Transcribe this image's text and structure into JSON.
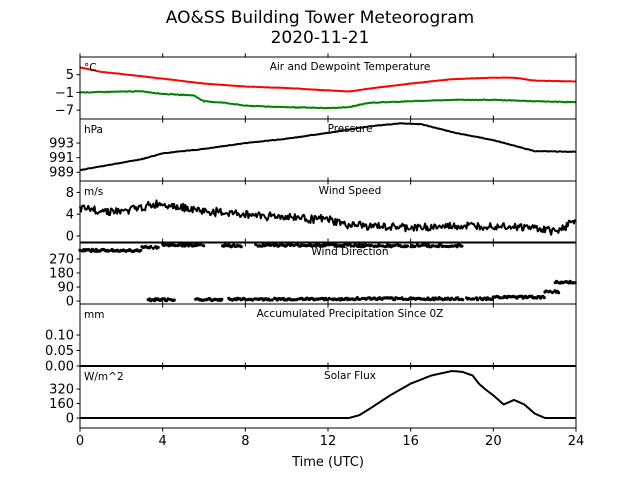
{
  "title": "AO&SS Building Tower Meteorogram",
  "subtitle": "2020-11-21",
  "chart_data": {
    "type": "line",
    "xlabel": "Time (UTC)",
    "xlim": [
      0,
      24
    ],
    "xticks": [
      0,
      4,
      8,
      12,
      16,
      20,
      24
    ],
    "panels": [
      {
        "title": "Air and Dewpoint Temperature",
        "unit": "°C",
        "ylim": [
          -10,
          11
        ],
        "yticks": [
          5,
          -1,
          -7
        ],
        "yticklabels": [
          "5",
          "−1",
          "−7"
        ],
        "series": [
          {
            "name": "Air Temperature",
            "color": "#ff0000",
            "x": [
              0,
              1,
              3,
              6,
              8,
              10,
              12,
              13,
              14,
              16,
              18,
              20,
              21,
              22,
              24
            ],
            "y": [
              7.5,
              6,
              4.5,
              2,
              1,
              0.5,
              -0.3,
              -0.7,
              0.3,
              2,
              3.5,
              4,
              4,
              3,
              2.7
            ],
            "noise": 0.15
          },
          {
            "name": "Dewpoint",
            "color": "#008000",
            "x": [
              0,
              3,
              4,
              5.5,
              6,
              7,
              8,
              10,
              12,
              13,
              14,
              16,
              18,
              20,
              22,
              24
            ],
            "y": [
              -1,
              -0.6,
              -1.5,
              -2,
              -4,
              -4.5,
              -5.5,
              -6,
              -6.3,
              -6,
              -4.5,
              -4,
              -3.5,
              -3.5,
              -4,
              -4.3
            ],
            "noise": 0.3
          }
        ]
      },
      {
        "title": "Pressure",
        "unit": "hPa",
        "ylim": [
          987.8,
          996.3
        ],
        "yticks": [
          993,
          991,
          989
        ],
        "yticklabels": [
          "993",
          "991",
          "989"
        ],
        "series": [
          {
            "name": "Pressure",
            "color": "#000000",
            "x": [
              0,
              3,
              4,
              6,
              8,
              10,
              12,
              14,
              15.5,
              16.5,
              18,
              20,
              22,
              24
            ],
            "y": [
              989.3,
              990.8,
              991.6,
              992.2,
              993,
              993.6,
              994.4,
              995.3,
              995.7,
              995.6,
              994.5,
              993.4,
              991.9,
              991.8
            ],
            "noise": 0.1
          }
        ]
      },
      {
        "title": "Wind Speed",
        "unit": "m/s",
        "ylim": [
          -1.3,
          10.1
        ],
        "yticks": [
          8,
          4,
          0
        ],
        "yticklabels": [
          "8",
          "4",
          "0"
        ],
        "series": [
          {
            "name": "Wind Speed",
            "color": "#000000",
            "x": [
              0,
              2,
              4,
              6,
              8,
              10,
              12,
              13,
              16,
              20,
              22,
              23,
              24
            ],
            "y": [
              5,
              4.5,
              6,
              4.5,
              4,
              3.5,
              3,
              2,
              1.5,
              2,
              1.5,
              0.8,
              3
            ],
            "noise": 1.8
          }
        ]
      },
      {
        "title": "Wind Direction",
        "unit": "",
        "ylim": [
          -19,
          379
        ],
        "yticks": [
          270,
          180,
          90,
          0
        ],
        "yticklabels": [
          "270",
          "180",
          "90",
          "0"
        ],
        "scatter": true,
        "clusters": [
          {
            "from": 0,
            "to": 3,
            "deg": 325
          },
          {
            "from": 3,
            "to": 3.8,
            "deg": 345
          },
          {
            "from": 3.3,
            "to": 4.6,
            "deg": 8
          },
          {
            "from": 4,
            "to": 6,
            "deg": 360
          },
          {
            "from": 5.6,
            "to": 6.9,
            "deg": 10
          },
          {
            "from": 6.9,
            "to": 7.8,
            "deg": 355
          },
          {
            "from": 7.2,
            "to": 13,
            "deg": 12
          },
          {
            "from": 8.5,
            "to": 13.5,
            "deg": 358
          },
          {
            "from": 13,
            "to": 20,
            "deg": 15
          },
          {
            "from": 13.5,
            "to": 18.5,
            "deg": 355
          },
          {
            "from": 20,
            "to": 22.5,
            "deg": 25
          },
          {
            "from": 22.5,
            "to": 23.2,
            "deg": 60
          },
          {
            "from": 23,
            "to": 24,
            "deg": 120
          }
        ]
      },
      {
        "title": "Accumulated Precipitation Since 0Z",
        "unit": "mm",
        "ylim": [
          0,
          0.2
        ],
        "yticks": [
          0.1,
          0.05,
          0
        ],
        "yticklabels": [
          "0.10",
          "0.05",
          "0.00"
        ],
        "series": [
          {
            "name": "Precipitation",
            "color": "#000000",
            "x": [
              0,
              24
            ],
            "y": [
              0,
              0
            ],
            "noise": 0
          }
        ]
      },
      {
        "title": "Solar Flux",
        "unit": "W/m^2",
        "ylim": [
          -110,
          575
        ],
        "yticks": [
          320,
          160,
          0
        ],
        "yticklabels": [
          "320",
          "160",
          "0"
        ],
        "series": [
          {
            "name": "Solar Flux",
            "color": "#000000",
            "x": [
              0,
              13,
              13.5,
              14,
              15,
              16,
              17,
              18,
              18.5,
              19,
              19.3,
              19.6,
              20,
              20.5,
              21,
              21.5,
              22,
              22.5,
              24
            ],
            "y": [
              0,
              0,
              30,
              100,
              250,
              380,
              470,
              520,
              510,
              470,
              380,
              320,
              250,
              150,
              200,
              150,
              50,
              0,
              0
            ],
            "noise": 0
          }
        ]
      }
    ]
  }
}
